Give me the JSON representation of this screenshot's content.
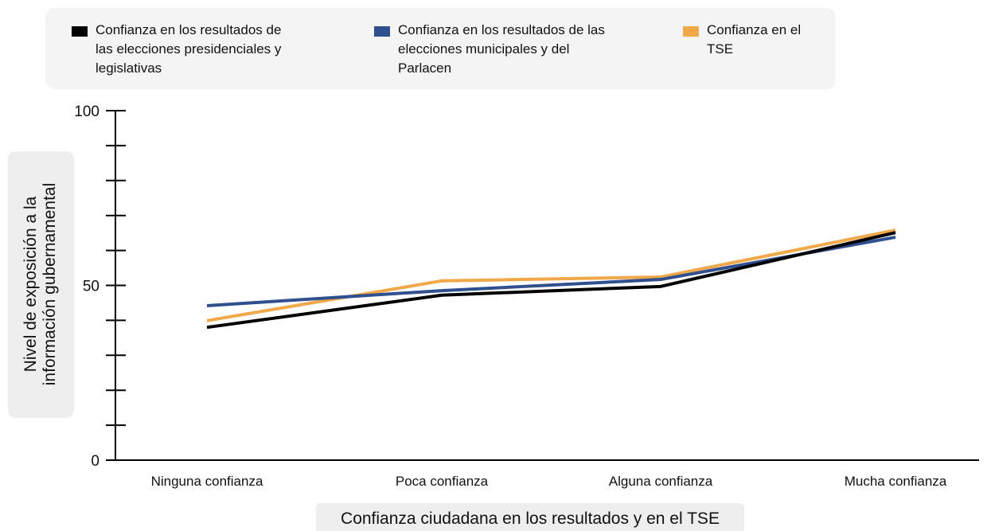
{
  "chart_data": {
    "type": "line",
    "categories": [
      "Ninguna confianza",
      "Poca confianza",
      "Alguna confianza",
      "Mucha confianza"
    ],
    "series": [
      {
        "name": "Confianza en los resultados de las elecciones presidenciales y legislativas",
        "color": "#000000",
        "values": [
          38.0,
          47.2,
          49.7,
          65.1
        ]
      },
      {
        "name": "Confianza en los resultados de las elecciones municipales y del Parlacen",
        "color": "#2f4f8f",
        "values": [
          44.2,
          48.5,
          51.7,
          63.8
        ]
      },
      {
        "name": "Confianza en el TSE",
        "color": "#f0a848",
        "values": [
          39.9,
          51.3,
          52.4,
          65.8
        ]
      }
    ],
    "ylim": [
      0,
      100
    ],
    "yticks": [
      0,
      50,
      100
    ],
    "yminor_ticks": [
      10,
      20,
      30,
      40,
      60,
      70,
      80,
      90
    ],
    "ylabel": [
      "Nivel de exposición a la",
      "información gubernamental"
    ],
    "xlabel": "Confianza ciudadana en los resultados y en el TSE"
  }
}
